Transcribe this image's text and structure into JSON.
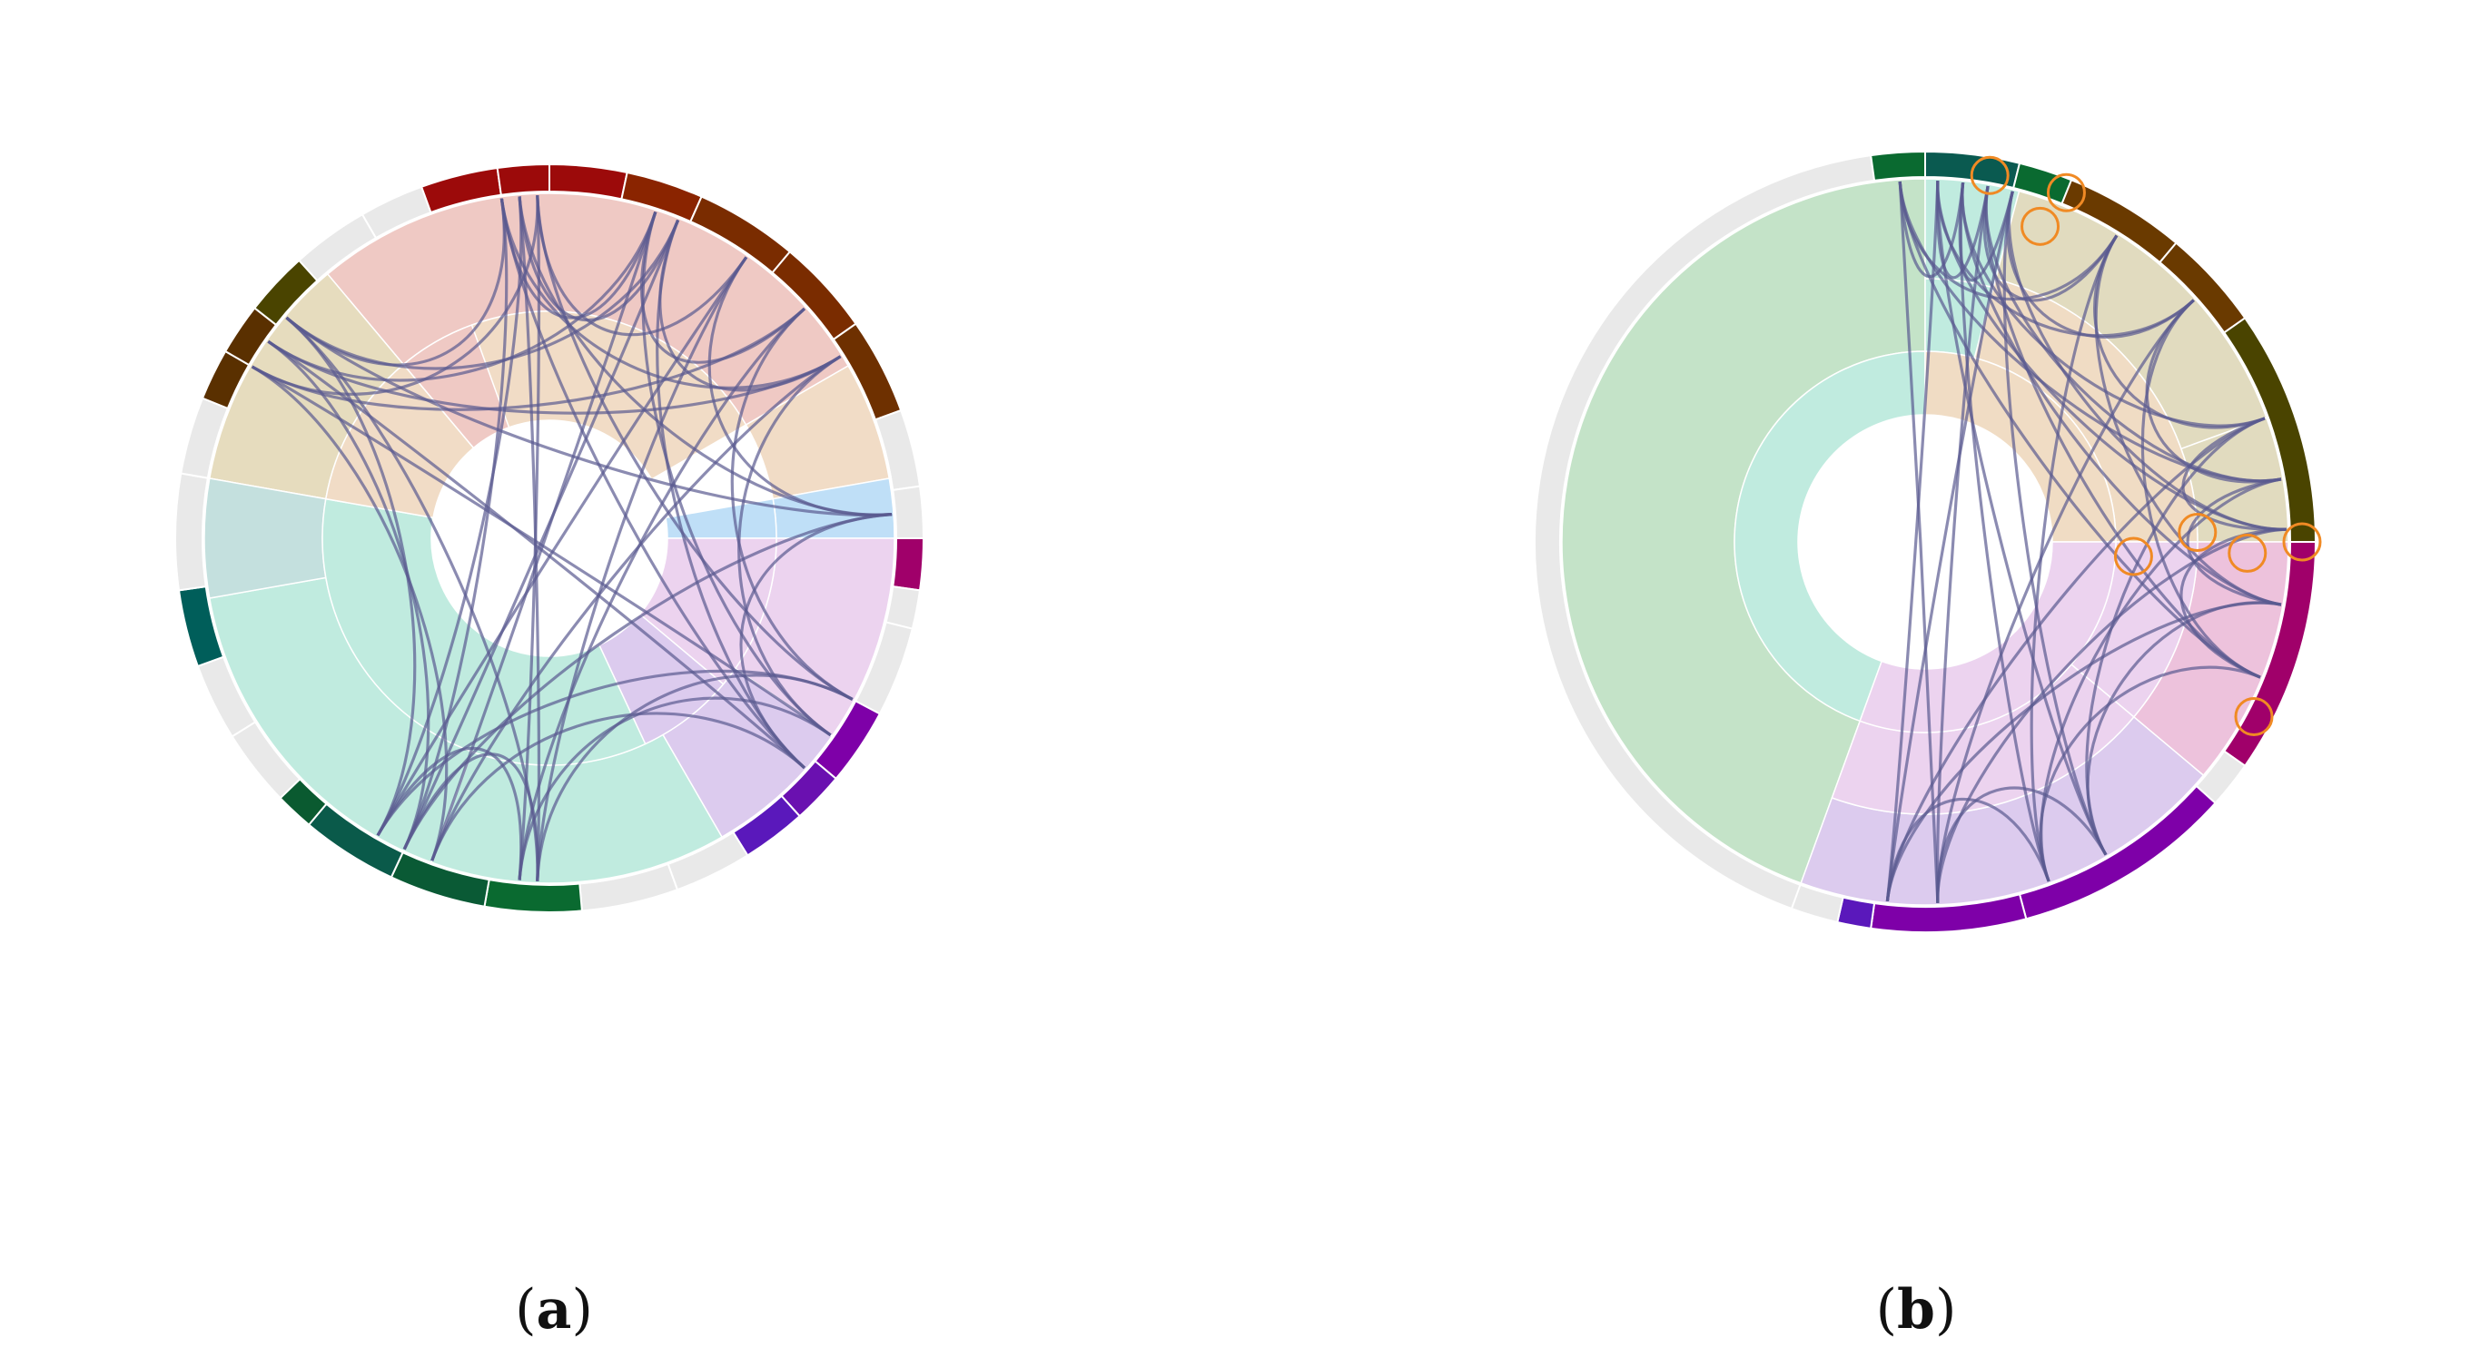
{
  "panels": [
    {
      "id": "a",
      "caption": "a",
      "colors": {
        "outer_ring_empty": "#e9e9e9",
        "edge": "#5a5a90",
        "region_peach": "#f1dcc6",
        "region_rose": "#efc9c4",
        "region_olive": "#e6dcbe",
        "region_sky": "#bfdff7",
        "region_lilac": "#ecd3ef",
        "region_pink": "#edc2dc",
        "region_violet": "#dccbee",
        "region_mint": "#c0ebdf",
        "region_sage": "#c9e3cb",
        "region_teal_grey": "#c4e0de"
      }
    },
    {
      "id": "b",
      "caption": "b",
      "colors": {
        "outer_ring_empty": "#e9e9e9",
        "edge": "#5a5a90",
        "highlight_circle": "#f08a24",
        "region_sage": "#c4e3c8",
        "region_mint": "#c0ebdf",
        "region_peach": "#f0dcc4",
        "region_olive": "#e1dbbf",
        "region_lilac": "#ecd3ef",
        "region_pink": "#edc2dc",
        "region_violet": "#dccbee"
      }
    }
  ]
}
